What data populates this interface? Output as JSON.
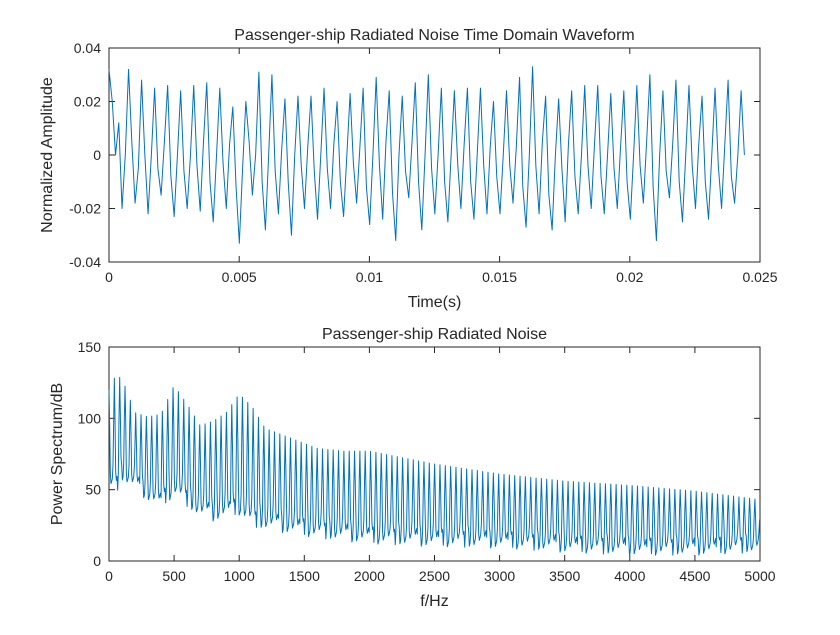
{
  "chart_data": [
    {
      "type": "line",
      "title": "Passenger-ship Radiated Noise Time Domain Waveform",
      "xlabel": "Time(s)",
      "ylabel": "Normalized Amplitude",
      "xlim": [
        0,
        0.025
      ],
      "ylim": [
        -0.04,
        0.04
      ],
      "xticks": [
        0,
        0.005,
        0.01,
        0.015,
        0.02,
        0.025
      ],
      "xtick_labels": [
        "0",
        "0.005",
        "0.01",
        "0.015",
        "0.02",
        "0.025"
      ],
      "yticks": [
        -0.04,
        -0.02,
        0,
        0.02,
        0.04
      ],
      "ytick_labels": [
        "-0.04",
        "-0.02",
        "0",
        "0.02",
        "0.04"
      ],
      "grid": false,
      "line_color": "#0072BD",
      "series": [
        {
          "x_start": 0,
          "x_end": 0.0244,
          "sample_count": 600,
          "approx_peak_amplitude": 0.033,
          "dominant_period_s": 0.00041,
          "values": [
            0.032,
            0.02,
            0.0,
            0.012,
            -0.02,
            0.0,
            0.032,
            0.005,
            -0.018,
            -0.005,
            0.028,
            0.0,
            -0.022,
            0.0,
            0.025,
            -0.005,
            -0.015,
            0.005,
            0.026,
            -0.008,
            -0.023,
            0.0,
            0.024,
            -0.006,
            -0.02,
            0.0,
            0.026,
            -0.004,
            -0.021,
            0.005,
            0.027,
            -0.01,
            -0.025,
            0.0,
            0.025,
            -0.003,
            -0.02,
            0.004,
            0.018,
            -0.012,
            -0.033,
            -0.005,
            0.02,
            0.005,
            -0.015,
            0.0,
            0.031,
            -0.01,
            -0.028,
            0.0,
            0.03,
            -0.006,
            -0.022,
            0.002,
            0.021,
            -0.01,
            -0.03,
            0.0,
            0.022,
            -0.004,
            -0.02,
            0.003,
            0.022,
            -0.006,
            -0.024,
            0.0,
            0.025,
            -0.005,
            -0.02,
            0.004,
            0.02,
            -0.01,
            -0.023,
            0.0,
            0.023,
            -0.003,
            -0.018,
            0.003,
            0.025,
            -0.012,
            -0.026,
            0.0,
            0.029,
            -0.004,
            -0.024,
            0.005,
            0.024,
            -0.014,
            -0.032,
            0.0,
            0.022,
            -0.006,
            -0.016,
            0.005,
            0.027,
            -0.01,
            -0.028,
            0.0,
            0.03,
            -0.005,
            -0.022,
            0.0,
            0.025,
            -0.01,
            -0.025,
            0.0,
            0.024,
            -0.003,
            -0.02,
            0.004,
            0.025,
            -0.01,
            -0.024,
            0.0,
            0.025,
            -0.004,
            -0.022,
            0.003,
            0.02,
            -0.008,
            -0.022,
            0.0,
            0.024,
            -0.004,
            -0.018,
            0.003,
            0.029,
            -0.012,
            -0.027,
            0.0,
            0.033,
            -0.004,
            -0.022,
            0.005,
            0.022,
            -0.015,
            -0.028,
            0.0,
            0.021,
            -0.005,
            -0.025,
            0.004,
            0.024,
            -0.008,
            -0.022,
            0.0,
            0.026,
            -0.004,
            -0.02,
            0.004,
            0.026,
            -0.008,
            -0.022,
            0.0,
            0.023,
            -0.005,
            -0.02,
            0.003,
            0.024,
            -0.01,
            -0.024,
            0.0,
            0.026,
            -0.004,
            -0.018,
            0.005,
            0.03,
            -0.012,
            -0.032,
            0.0,
            0.024,
            -0.006,
            -0.016,
            0.004,
            0.028,
            -0.01,
            -0.025,
            0.0,
            0.026,
            -0.004,
            -0.02,
            0.004,
            0.022,
            -0.01,
            -0.024,
            0.0,
            0.025,
            -0.004,
            -0.02,
            0.004,
            0.028,
            -0.008,
            -0.018,
            0.0,
            0.024,
            0.0
          ]
        }
      ]
    },
    {
      "type": "line",
      "title": "Passenger-ship Radiated Noise",
      "xlabel": "f/Hz",
      "ylabel": "Power Spectrum/dB",
      "xlim": [
        0,
        5000
      ],
      "ylim": [
        0,
        150
      ],
      "xticks": [
        0,
        500,
        1000,
        1500,
        2000,
        2500,
        3000,
        3500,
        4000,
        4500,
        5000
      ],
      "xtick_labels": [
        "0",
        "500",
        "1000",
        "1500",
        "2000",
        "2500",
        "3000",
        "3500",
        "4000",
        "4500",
        "5000"
      ],
      "yticks": [
        0,
        50,
        100,
        150
      ],
      "ytick_labels": [
        "0",
        "50",
        "100",
        "150"
      ],
      "grid": false,
      "line_color": "#0072BD",
      "series": [
        {
          "x_start": 0,
          "x_end": 5000,
          "harmonic_spacing_hz": 41,
          "envelope_x": [
            0,
            50,
            100,
            200,
            300,
            400,
            500,
            600,
            700,
            800,
            900,
            1000,
            1100,
            1200,
            1400,
            1600,
            1800,
            2000,
            2500,
            3000,
            3500,
            4000,
            4500,
            5000
          ],
          "peak_envelope_db": [
            120,
            130,
            128,
            104,
            101,
            103,
            123,
            110,
            95,
            98,
            104,
            117,
            108,
            93,
            86,
            79,
            77,
            77,
            68,
            61,
            56,
            53,
            49,
            43
          ],
          "trough_envelope_db": [
            55,
            52,
            62,
            55,
            48,
            42,
            52,
            44,
            36,
            34,
            36,
            38,
            30,
            28,
            25,
            22,
            20,
            18,
            16,
            15,
            12,
            10,
            10,
            12
          ]
        }
      ]
    }
  ]
}
